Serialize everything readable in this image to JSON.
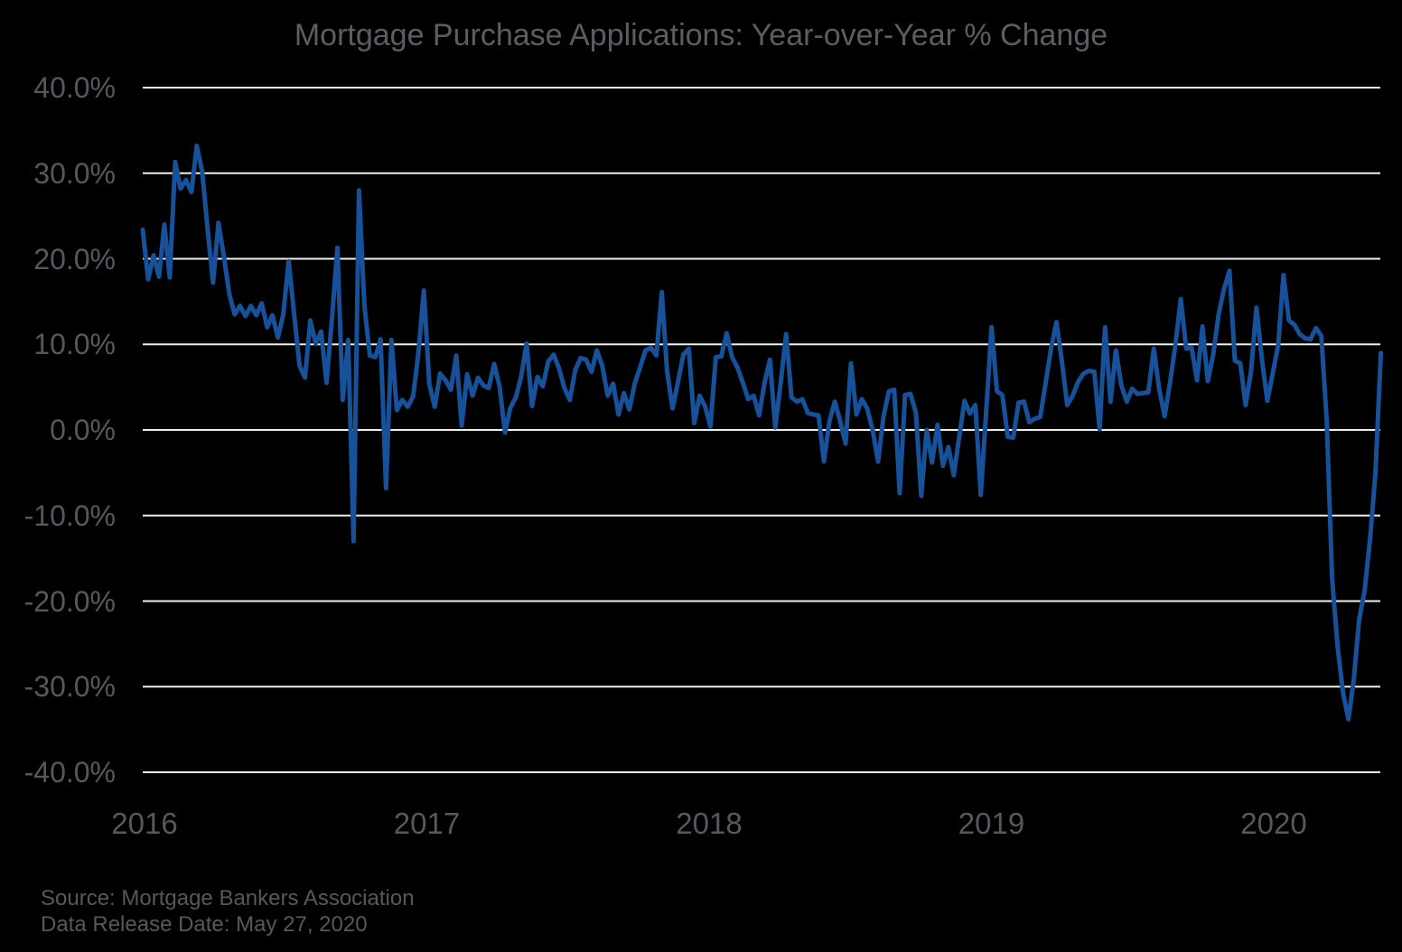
{
  "title": "Mortgage Purchase Applications: Year-over-Year % Change",
  "footer": {
    "source": "Source: Mortgage Bankers Association",
    "release": "Data Release Date: May 27, 2020"
  },
  "colors": {
    "background": "#000000",
    "line": "#175199",
    "gridline": "#efefef",
    "text": "#55595e"
  },
  "chart_data": {
    "type": "line",
    "title": "Mortgage Purchase Applications: Year-over-Year % Change",
    "series_name": "Mortgage purchase applications, year-over-year percent change (weekly)",
    "frequency": "weekly",
    "grid": true,
    "legend": false,
    "xlabel": "",
    "ylabel": "",
    "x_tick_labels": [
      "2016",
      "2017",
      "2018",
      "2019",
      "2020"
    ],
    "y_tick_labels": [
      "40.0%",
      "30.0%",
      "20.0%",
      "10.0%",
      "0.0%",
      "-10.0%",
      "-20.0%",
      "-30.0%",
      "-40.0%"
    ],
    "y_tick_values": [
      40,
      30,
      20,
      10,
      0,
      -10,
      -20,
      -30,
      -40
    ],
    "ylim": [
      -40,
      40
    ],
    "values_pct": [
      23.4,
      17.6,
      20.4,
      17.9,
      24.0,
      17.8,
      31.3,
      28.2,
      29.2,
      27.8,
      33.2,
      30.2,
      23.5,
      17.2,
      24.2,
      20.3,
      15.9,
      13.5,
      14.5,
      13.3,
      14.5,
      13.4,
      14.8,
      12.0,
      13.4,
      10.8,
      13.5,
      19.7,
      13.5,
      7.5,
      6.1,
      12.8,
      10.1,
      11.5,
      5.5,
      13.0,
      21.3,
      3.5,
      10.5,
      -13.0,
      28.0,
      14.5,
      8.7,
      8.5,
      10.6,
      -6.8,
      10.5,
      2.3,
      3.5,
      2.7,
      3.9,
      9.0,
      16.3,
      5.4,
      2.7,
      6.6,
      5.8,
      4.7,
      8.7,
      0.5,
      6.5,
      4.0,
      6.1,
      5.2,
      4.9,
      7.7,
      5.1,
      -0.3,
      2.6,
      3.8,
      6.3,
      10.1,
      2.8,
      6.2,
      5.1,
      8.0,
      8.8,
      7.2,
      4.9,
      3.5,
      7.0,
      8.4,
      8.2,
      6.8,
      9.3,
      7.5,
      4.0,
      5.4,
      1.8,
      4.3,
      2.4,
      5.4,
      7.3,
      9.3,
      9.6,
      8.7,
      16.1,
      6.8,
      2.5,
      5.6,
      8.8,
      9.5,
      0.8,
      4.0,
      2.8,
      0.4,
      8.5,
      8.6,
      11.3,
      8.5,
      7.3,
      5.5,
      3.6,
      4.0,
      1.7,
      5.5,
      8.2,
      0.3,
      5.5,
      11.2,
      3.8,
      3.3,
      3.6,
      2.0,
      1.8,
      1.7,
      -3.7,
      1.0,
      3.3,
      1.0,
      -1.6,
      7.8,
      1.8,
      3.6,
      2.5,
      0.0,
      -3.7,
      1.5,
      4.5,
      4.7,
      -7.4,
      4.1,
      4.2,
      2.0,
      -7.7,
      0.0,
      -3.8,
      0.6,
      -4.2,
      -2.0,
      -5.3,
      -0.9,
      3.4,
      1.9,
      2.9,
      -7.6,
      2.2,
      12.0,
      4.5,
      4.1,
      -0.8,
      -0.9,
      3.2,
      3.3,
      0.9,
      1.3,
      1.5,
      5.5,
      9.5,
      12.6,
      8.0,
      2.9,
      4.0,
      5.6,
      6.6,
      6.9,
      6.8,
      0.1,
      12.0,
      3.3,
      9.3,
      5.2,
      3.3,
      4.8,
      4.2,
      4.3,
      4.4,
      9.5,
      4.8,
      1.6,
      5.5,
      9.9,
      15.3,
      9.5,
      9.6,
      5.8,
      12.1,
      5.7,
      8.8,
      13.5,
      16.5,
      18.6,
      8.1,
      7.8,
      2.9,
      6.9,
      14.3,
      8.3,
      3.4,
      6.6,
      9.9,
      18.1,
      12.8,
      12.3,
      11.2,
      10.7,
      10.6,
      11.9,
      11.0,
      1.0,
      -17.5,
      -25.3,
      -30.7,
      -33.8,
      -29.2,
      -22.1,
      -18.8,
      -12.8,
      -5.0,
      9.0
    ]
  }
}
